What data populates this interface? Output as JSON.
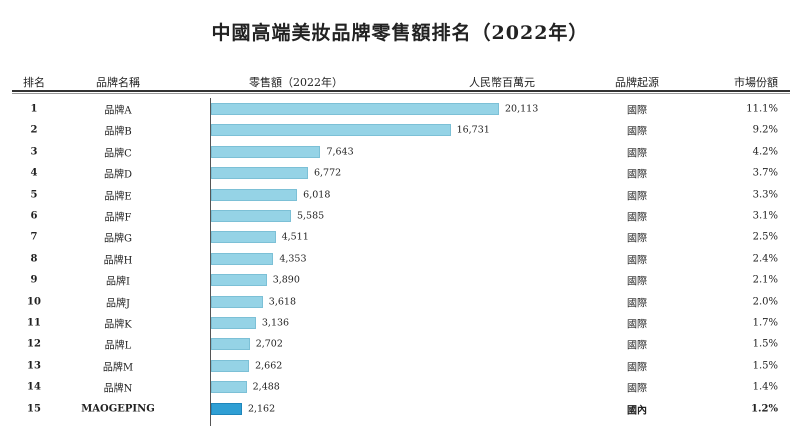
{
  "title": "中國高端美妝品牌零售額排名（2022年）",
  "headers": {
    "rank": "排名",
    "brand": "品牌名稱",
    "sales": "零售額（2022年）",
    "unit": "人民幣百萬元",
    "origin": "品牌起源",
    "share": "市場份額"
  },
  "chart_data": {
    "type": "bar",
    "orientation": "horizontal",
    "categories": [
      "品牌A",
      "品牌B",
      "品牌C",
      "品牌D",
      "品牌E",
      "品牌F",
      "品牌G",
      "品牌H",
      "品牌I",
      "品牌J",
      "品牌K",
      "品牌L",
      "品牌M",
      "品牌N",
      "MAOGEPING"
    ],
    "values": [
      20113,
      16731,
      7643,
      6772,
      6018,
      5585,
      4511,
      4353,
      3890,
      3618,
      3136,
      2702,
      2662,
      2488,
      2162
    ],
    "highlight_category": "MAOGEPING",
    "colors": {
      "bar": "#95d3e6",
      "highlight": "#2f9fd4"
    }
  },
  "rows": [
    {
      "rank": "1",
      "brand": "品牌A",
      "value_label": "20,113",
      "origin": "國際",
      "share": "11.1%"
    },
    {
      "rank": "2",
      "brand": "品牌B",
      "value_label": "16,731",
      "origin": "國際",
      "share": "9.2%"
    },
    {
      "rank": "3",
      "brand": "品牌C",
      "value_label": "7,643",
      "origin": "國際",
      "share": "4.2%"
    },
    {
      "rank": "4",
      "brand": "品牌D",
      "value_label": "6,772",
      "origin": "國際",
      "share": "3.7%"
    },
    {
      "rank": "5",
      "brand": "品牌E",
      "value_label": "6,018",
      "origin": "國際",
      "share": "3.3%"
    },
    {
      "rank": "6",
      "brand": "品牌F",
      "value_label": "5,585",
      "origin": "國際",
      "share": "3.1%"
    },
    {
      "rank": "7",
      "brand": "品牌G",
      "value_label": "4,511",
      "origin": "國際",
      "share": "2.5%"
    },
    {
      "rank": "8",
      "brand": "品牌H",
      "value_label": "4,353",
      "origin": "國際",
      "share": "2.4%"
    },
    {
      "rank": "9",
      "brand": "品牌I",
      "value_label": "3,890",
      "origin": "國際",
      "share": "2.1%"
    },
    {
      "rank": "10",
      "brand": "品牌J",
      "value_label": "3,618",
      "origin": "國際",
      "share": "2.0%"
    },
    {
      "rank": "11",
      "brand": "品牌K",
      "value_label": "3,136",
      "origin": "國際",
      "share": "1.7%"
    },
    {
      "rank": "12",
      "brand": "品牌L",
      "value_label": "2,702",
      "origin": "國際",
      "share": "1.5%"
    },
    {
      "rank": "13",
      "brand": "品牌M",
      "value_label": "2,662",
      "origin": "國際",
      "share": "1.5%"
    },
    {
      "rank": "14",
      "brand": "品牌N",
      "value_label": "2,488",
      "origin": "國際",
      "share": "1.4%"
    },
    {
      "rank": "15",
      "brand": "MAOGEPING",
      "value_label": "2,162",
      "origin": "國內",
      "share": "1.2%"
    }
  ]
}
